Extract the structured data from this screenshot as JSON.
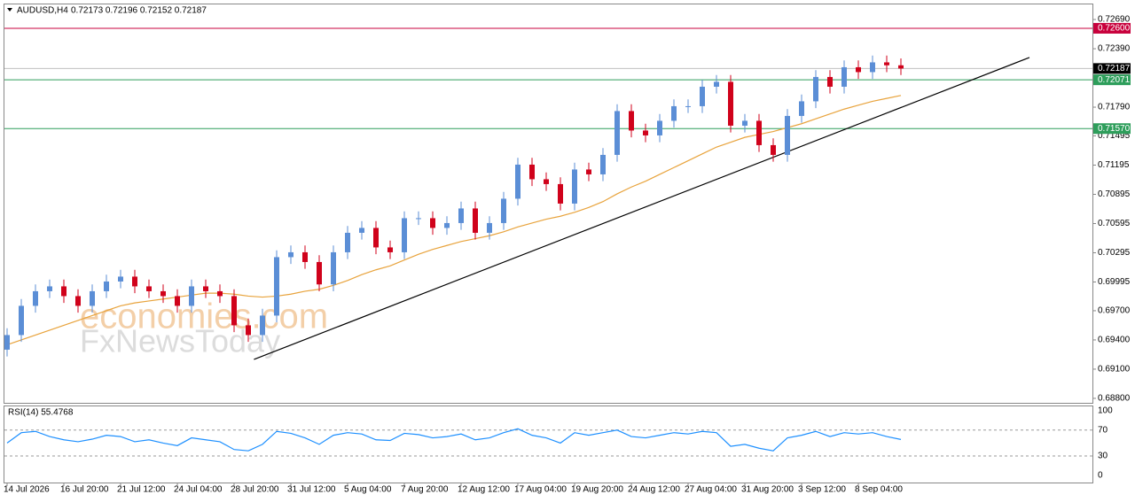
{
  "chart_data": {
    "type": "candlestick",
    "symbol": "AUDUSD,H4",
    "quote": "0.72173 0.72196 0.72152 0.72187",
    "categories": [
      "14 Jul 2026",
      null,
      null,
      null,
      "16 Jul 20:00",
      null,
      null,
      null,
      "21 Jul 12:00",
      null,
      null,
      null,
      "24 Jul 04:00",
      null,
      null,
      null,
      "28 Jul 20:00",
      null,
      null,
      null,
      "31 Jul 12:00",
      null,
      null,
      null,
      "5 Aug 04:00",
      null,
      null,
      null,
      "7 Aug 20:00",
      null,
      null,
      null,
      "12 Aug 12:00",
      null,
      null,
      null,
      "17 Aug 04:00",
      null,
      null,
      null,
      "19 Aug 20:00",
      null,
      null,
      null,
      "24 Aug 12:00",
      null,
      null,
      null,
      "27 Aug 04:00",
      null,
      null,
      null,
      "31 Aug 20:00",
      null,
      null,
      null,
      "3 Sep 12:00",
      null,
      null,
      null,
      "8 Sep 04:00",
      null,
      null,
      null
    ],
    "open": [
      0.693,
      0.6945,
      0.6975,
      0.699,
      0.6995,
      0.6985,
      0.6975,
      0.699,
      0.7,
      0.7005,
      0.6995,
      0.699,
      0.6985,
      0.6975,
      0.6995,
      0.699,
      0.6985,
      0.6955,
      0.6945,
      0.6965,
      0.7025,
      0.703,
      0.702,
      0.6997,
      0.703,
      0.705,
      0.7055,
      0.7035,
      0.703,
      0.7065,
      0.7065,
      0.7055,
      0.706,
      0.7075,
      0.705,
      0.706,
      0.7085,
      0.712,
      0.7105,
      0.71,
      0.708,
      0.7115,
      0.711,
      0.713,
      0.7175,
      0.7155,
      0.715,
      0.7165,
      0.718,
      0.718,
      0.72,
      0.7205,
      0.716,
      0.7165,
      0.714,
      0.713,
      0.717,
      0.7185,
      0.721,
      0.72,
      0.722,
      0.7215,
      0.7225,
      0.7222
    ],
    "high": [
      0.6952,
      0.6982,
      0.6997,
      0.7002,
      0.7002,
      0.6992,
      0.6997,
      0.7007,
      0.7012,
      0.7012,
      0.7002,
      0.6997,
      0.6992,
      0.7002,
      0.7002,
      0.6997,
      0.6992,
      0.6962,
      0.6972,
      0.7032,
      0.7037,
      0.7037,
      0.7027,
      0.7037,
      0.7057,
      0.7062,
      0.7062,
      0.7042,
      0.7072,
      0.7072,
      0.7072,
      0.7067,
      0.7082,
      0.7082,
      0.7067,
      0.7092,
      0.7127,
      0.7127,
      0.7112,
      0.7107,
      0.7122,
      0.7122,
      0.7137,
      0.7182,
      0.7182,
      0.7162,
      0.7172,
      0.7187,
      0.7187,
      0.7207,
      0.7212,
      0.7212,
      0.7172,
      0.7172,
      0.7147,
      0.7177,
      0.7192,
      0.7217,
      0.7217,
      0.7227,
      0.7227,
      0.7232,
      0.7232,
      0.7229
    ],
    "low": [
      0.6923,
      0.6938,
      0.6968,
      0.6983,
      0.6978,
      0.6968,
      0.6968,
      0.6983,
      0.6993,
      0.6988,
      0.6983,
      0.6978,
      0.6968,
      0.6968,
      0.6983,
      0.6978,
      0.6948,
      0.6938,
      0.6938,
      0.6958,
      0.7018,
      0.7013,
      0.699,
      0.699,
      0.7023,
      0.7043,
      0.7028,
      0.7023,
      0.7023,
      0.7058,
      0.7048,
      0.7048,
      0.7053,
      0.7043,
      0.7043,
      0.7053,
      0.7078,
      0.7098,
      0.7093,
      0.7073,
      0.7073,
      0.7103,
      0.7103,
      0.7123,
      0.7148,
      0.7143,
      0.7143,
      0.7158,
      0.7173,
      0.7173,
      0.7193,
      0.7153,
      0.7153,
      0.7133,
      0.7123,
      0.7123,
      0.7163,
      0.7178,
      0.7193,
      0.7193,
      0.7208,
      0.7208,
      0.7215,
      0.7212
    ],
    "close": [
      0.6945,
      0.6975,
      0.699,
      0.6995,
      0.6985,
      0.6975,
      0.699,
      0.7,
      0.7005,
      0.6995,
      0.699,
      0.6985,
      0.6975,
      0.6995,
      0.699,
      0.6985,
      0.6955,
      0.6945,
      0.6965,
      0.7025,
      0.703,
      0.702,
      0.6997,
      0.703,
      0.705,
      0.7055,
      0.7035,
      0.703,
      0.7065,
      0.7065,
      0.7055,
      0.706,
      0.7075,
      0.705,
      0.706,
      0.7085,
      0.712,
      0.7105,
      0.71,
      0.708,
      0.7115,
      0.711,
      0.713,
      0.7175,
      0.7155,
      0.715,
      0.7165,
      0.718,
      0.718,
      0.72,
      0.7205,
      0.716,
      0.7165,
      0.714,
      0.713,
      0.717,
      0.7185,
      0.721,
      0.72,
      0.722,
      0.7215,
      0.7225,
      0.7222,
      0.72187
    ],
    "up_color": "#5b8ed6",
    "down_color": "#d0021b",
    "ylim": [
      0.68754,
      0.72854
    ],
    "yticks": [
      {
        "value": 0.7269,
        "label": "0.72690"
      },
      {
        "value": 0.7239,
        "label": "0.72390"
      },
      {
        "value": 0.7179,
        "label": "0.71790"
      },
      0.71495,
      0.71195,
      0.70895,
      0.70595,
      0.70295,
      0.69995,
      {
        "value": 0.697,
        "label": "0.69700"
      },
      {
        "value": 0.694,
        "label": "0.69400"
      },
      {
        "value": 0.691,
        "label": "0.69100"
      },
      {
        "value": 0.688,
        "label": "0.68800"
      }
    ],
    "ma": {
      "color": "#e8a33c",
      "values": [
        0.6935,
        0.694,
        0.6945,
        0.695,
        0.6955,
        0.696,
        0.6965,
        0.697,
        0.6975,
        0.6978,
        0.698,
        0.6982,
        0.6984,
        0.6986,
        0.6988,
        0.6988,
        0.6987,
        0.6985,
        0.6984,
        0.6985,
        0.6987,
        0.699,
        0.6992,
        0.6996,
        0.7001,
        0.7007,
        0.7012,
        0.7016,
        0.7022,
        0.7028,
        0.7033,
        0.7037,
        0.7041,
        0.7044,
        0.7047,
        0.7051,
        0.7056,
        0.706,
        0.7064,
        0.7067,
        0.7071,
        0.7076,
        0.7082,
        0.709,
        0.7097,
        0.7103,
        0.711,
        0.7117,
        0.7124,
        0.7131,
        0.7138,
        0.7143,
        0.7148,
        0.7151,
        0.7154,
        0.7158,
        0.7162,
        0.7167,
        0.7172,
        0.7177,
        0.7181,
        0.7185,
        0.7188,
        0.7191
      ]
    },
    "levels": [
      {
        "value": 0.726,
        "label": "0.72600",
        "color": "#c8003c"
      },
      {
        "value": 0.72187,
        "label": "0.72187",
        "color": "#000000"
      },
      {
        "value": 0.72071,
        "label": "0.72071",
        "color": "#2e9e5b"
      },
      {
        "value": 0.7157,
        "label": "0.71570",
        "color": "#2e9e5b"
      }
    ],
    "trendline": {
      "color": "#000000",
      "x": [
        17.4,
        72.06
      ],
      "values": [
        0.692,
        0.723
      ]
    },
    "watermark": [
      "economies.com",
      "FxNewsToday"
    ],
    "rsi": {
      "title": "RSI(14) 55.4768",
      "color": "#1e90ff",
      "values": [
        50,
        66,
        68,
        60,
        55,
        52,
        56,
        62,
        60,
        52,
        55,
        50,
        46,
        58,
        55,
        52,
        40,
        38,
        48,
        68,
        65,
        58,
        48,
        62,
        66,
        64,
        55,
        54,
        65,
        63,
        58,
        60,
        64,
        55,
        58,
        66,
        72,
        62,
        58,
        50,
        66,
        62,
        66,
        70,
        60,
        58,
        62,
        66,
        64,
        68,
        66,
        45,
        48,
        42,
        38,
        58,
        62,
        68,
        60,
        66,
        64,
        66,
        60,
        55.4768
      ],
      "ylim": [
        -11,
        108
      ],
      "yticks": [
        100,
        70,
        30,
        0
      ],
      "levels": [
        70,
        30
      ]
    }
  }
}
